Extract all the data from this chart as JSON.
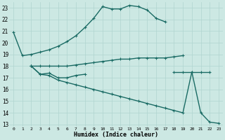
{
  "xlabel": "Humidex (Indice chaleur)",
  "bg_color": "#cce8e3",
  "grid_color": "#b0d4cf",
  "line_color": "#1a6b64",
  "xlim": [
    -0.5,
    23.5
  ],
  "ylim": [
    12.8,
    23.5
  ],
  "yticks": [
    13,
    14,
    15,
    16,
    17,
    18,
    19,
    20,
    21,
    22,
    23
  ],
  "xticks": [
    0,
    1,
    2,
    3,
    4,
    5,
    6,
    7,
    8,
    9,
    10,
    11,
    12,
    13,
    14,
    15,
    16,
    17,
    18,
    19,
    20,
    21,
    22,
    23
  ],
  "line1": {
    "x": [
      0,
      1,
      2,
      3,
      4,
      5,
      6,
      7,
      8,
      9,
      10,
      11,
      12,
      13,
      14,
      15,
      16,
      17
    ],
    "y": [
      20.9,
      18.9,
      19.0,
      19.2,
      19.4,
      19.7,
      20.1,
      20.6,
      21.3,
      22.1,
      23.1,
      22.9,
      22.9,
      23.2,
      23.1,
      22.8,
      22.1,
      21.8
    ]
  },
  "line2": {
    "x": [
      2,
      3,
      4,
      5,
      6,
      7,
      8,
      9,
      10,
      11,
      12,
      13,
      14,
      15,
      16,
      17,
      18,
      19
    ],
    "y": [
      18.0,
      18.0,
      18.0,
      18.0,
      18.0,
      18.1,
      18.2,
      18.3,
      18.4,
      18.5,
      18.6,
      18.6,
      18.7,
      18.7,
      18.7,
      18.7,
      18.8,
      18.9
    ]
  },
  "line3_seg1": {
    "x": [
      2,
      3,
      4,
      5,
      6,
      7,
      8
    ],
    "y": [
      18.0,
      17.3,
      17.4,
      17.0,
      17.0,
      17.2,
      17.3
    ]
  },
  "line3_seg2": {
    "x": [
      18,
      19,
      20,
      21,
      22
    ],
    "y": [
      17.5,
      17.5,
      17.5,
      17.5,
      17.5
    ]
  },
  "line4": {
    "x": [
      2,
      3,
      4,
      5,
      6,
      7,
      8,
      9,
      10,
      11,
      12,
      13,
      14,
      15,
      16,
      17,
      18,
      19,
      20,
      21,
      22,
      23
    ],
    "y": [
      18.0,
      17.3,
      17.2,
      16.8,
      16.6,
      16.4,
      16.2,
      16.0,
      15.8,
      15.6,
      15.4,
      15.2,
      15.0,
      14.8,
      14.6,
      14.4,
      14.2,
      14.0,
      17.5,
      14.0,
      13.2,
      13.1
    ]
  }
}
